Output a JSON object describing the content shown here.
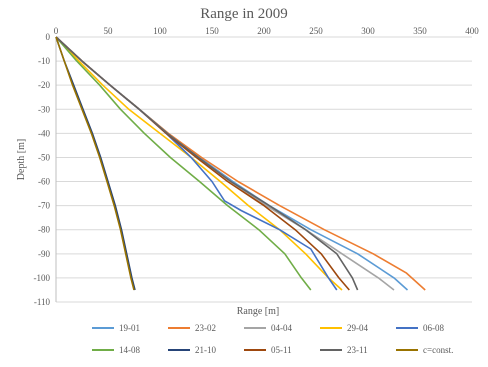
{
  "chart_data": {
    "type": "line",
    "title": "Range in 2009",
    "xlabel": "Range [m]",
    "ylabel": "Depth [m]",
    "xlim": [
      0,
      400
    ],
    "ylim": [
      -110,
      0
    ],
    "x_ticks": [
      "0",
      "50",
      "100",
      "150",
      "200",
      "250",
      "300",
      "350",
      "400"
    ],
    "y_ticks": [
      "0",
      "-10",
      "-20",
      "-30",
      "-40",
      "-50",
      "-60",
      "-70",
      "-80",
      "-90",
      "-100",
      "-110"
    ],
    "grid": "horizontal",
    "legend_position": "bottom",
    "series": [
      {
        "name": "19-01",
        "color": "#5B9BD5",
        "points": [
          [
            0,
            0
          ],
          [
            25,
            -10
          ],
          [
            52,
            -20
          ],
          [
            80,
            -30
          ],
          [
            108,
            -40
          ],
          [
            138,
            -50
          ],
          [
            170,
            -60
          ],
          [
            205,
            -70
          ],
          [
            245,
            -80
          ],
          [
            290,
            -90
          ],
          [
            325,
            -100
          ],
          [
            338,
            -105
          ]
        ]
      },
      {
        "name": "23-02",
        "color": "#ED7D31",
        "points": [
          [
            0,
            0
          ],
          [
            25,
            -10
          ],
          [
            52,
            -20
          ],
          [
            80,
            -30
          ],
          [
            108,
            -40
          ],
          [
            140,
            -50
          ],
          [
            175,
            -60
          ],
          [
            215,
            -70
          ],
          [
            258,
            -80
          ],
          [
            305,
            -90
          ],
          [
            337,
            -98
          ],
          [
            355,
            -105
          ]
        ]
      },
      {
        "name": "04-04",
        "color": "#A5A5A5",
        "points": [
          [
            0,
            0
          ],
          [
            25,
            -10
          ],
          [
            52,
            -20
          ],
          [
            80,
            -30
          ],
          [
            107,
            -40
          ],
          [
            137,
            -50
          ],
          [
            168,
            -60
          ],
          [
            202,
            -70
          ],
          [
            240,
            -80
          ],
          [
            275,
            -90
          ],
          [
            310,
            -100
          ],
          [
            325,
            -105
          ]
        ]
      },
      {
        "name": "29-04",
        "color": "#FFC000",
        "points": [
          [
            0,
            0
          ],
          [
            22,
            -10
          ],
          [
            45,
            -20
          ],
          [
            70,
            -30
          ],
          [
            100,
            -40
          ],
          [
            130,
            -50
          ],
          [
            158,
            -60
          ],
          [
            185,
            -70
          ],
          [
            215,
            -80
          ],
          [
            240,
            -90
          ],
          [
            262,
            -100
          ],
          [
            275,
            -105
          ]
        ]
      },
      {
        "name": "06-08",
        "color": "#4472C4",
        "points": [
          [
            0,
            0
          ],
          [
            25,
            -10
          ],
          [
            52,
            -20
          ],
          [
            80,
            -30
          ],
          [
            106,
            -40
          ],
          [
            130,
            -50
          ],
          [
            150,
            -60
          ],
          [
            162,
            -68
          ],
          [
            178,
            -72
          ],
          [
            215,
            -80
          ],
          [
            245,
            -88
          ],
          [
            262,
            -100
          ],
          [
            270,
            -105
          ]
        ]
      },
      {
        "name": "14-08",
        "color": "#70AD47",
        "points": [
          [
            0,
            0
          ],
          [
            20,
            -10
          ],
          [
            42,
            -20
          ],
          [
            62,
            -30
          ],
          [
            85,
            -40
          ],
          [
            110,
            -50
          ],
          [
            138,
            -60
          ],
          [
            165,
            -70
          ],
          [
            195,
            -80
          ],
          [
            220,
            -90
          ],
          [
            236,
            -100
          ],
          [
            245,
            -105
          ]
        ]
      },
      {
        "name": "21-10",
        "color": "#264478",
        "points": [
          [
            0,
            0
          ],
          [
            8,
            -10
          ],
          [
            17,
            -20
          ],
          [
            26,
            -30
          ],
          [
            35,
            -40
          ],
          [
            43,
            -50
          ],
          [
            50,
            -60
          ],
          [
            57,
            -70
          ],
          [
            63,
            -80
          ],
          [
            68,
            -90
          ],
          [
            73,
            -100
          ],
          [
            76,
            -105
          ]
        ]
      },
      {
        "name": "05-11",
        "color": "#9E480E",
        "points": [
          [
            0,
            0
          ],
          [
            25,
            -10
          ],
          [
            52,
            -20
          ],
          [
            80,
            -30
          ],
          [
            106,
            -40
          ],
          [
            135,
            -50
          ],
          [
            165,
            -60
          ],
          [
            200,
            -70
          ],
          [
            230,
            -80
          ],
          [
            255,
            -90
          ],
          [
            272,
            -100
          ],
          [
            282,
            -105
          ]
        ]
      },
      {
        "name": "23-11",
        "color": "#636363",
        "points": [
          [
            0,
            0
          ],
          [
            25,
            -10
          ],
          [
            52,
            -20
          ],
          [
            80,
            -30
          ],
          [
            107,
            -40
          ],
          [
            137,
            -50
          ],
          [
            168,
            -60
          ],
          [
            205,
            -70
          ],
          [
            240,
            -80
          ],
          [
            270,
            -90
          ],
          [
            285,
            -100
          ],
          [
            290,
            -105
          ]
        ]
      },
      {
        "name": "c=const.",
        "color": "#997300",
        "points": [
          [
            0,
            0
          ],
          [
            8,
            -10
          ],
          [
            16,
            -20
          ],
          [
            25,
            -30
          ],
          [
            34,
            -40
          ],
          [
            42,
            -50
          ],
          [
            49,
            -60
          ],
          [
            56,
            -70
          ],
          [
            62,
            -80
          ],
          [
            67,
            -90
          ],
          [
            72,
            -100
          ],
          [
            75,
            -105
          ]
        ]
      }
    ]
  }
}
